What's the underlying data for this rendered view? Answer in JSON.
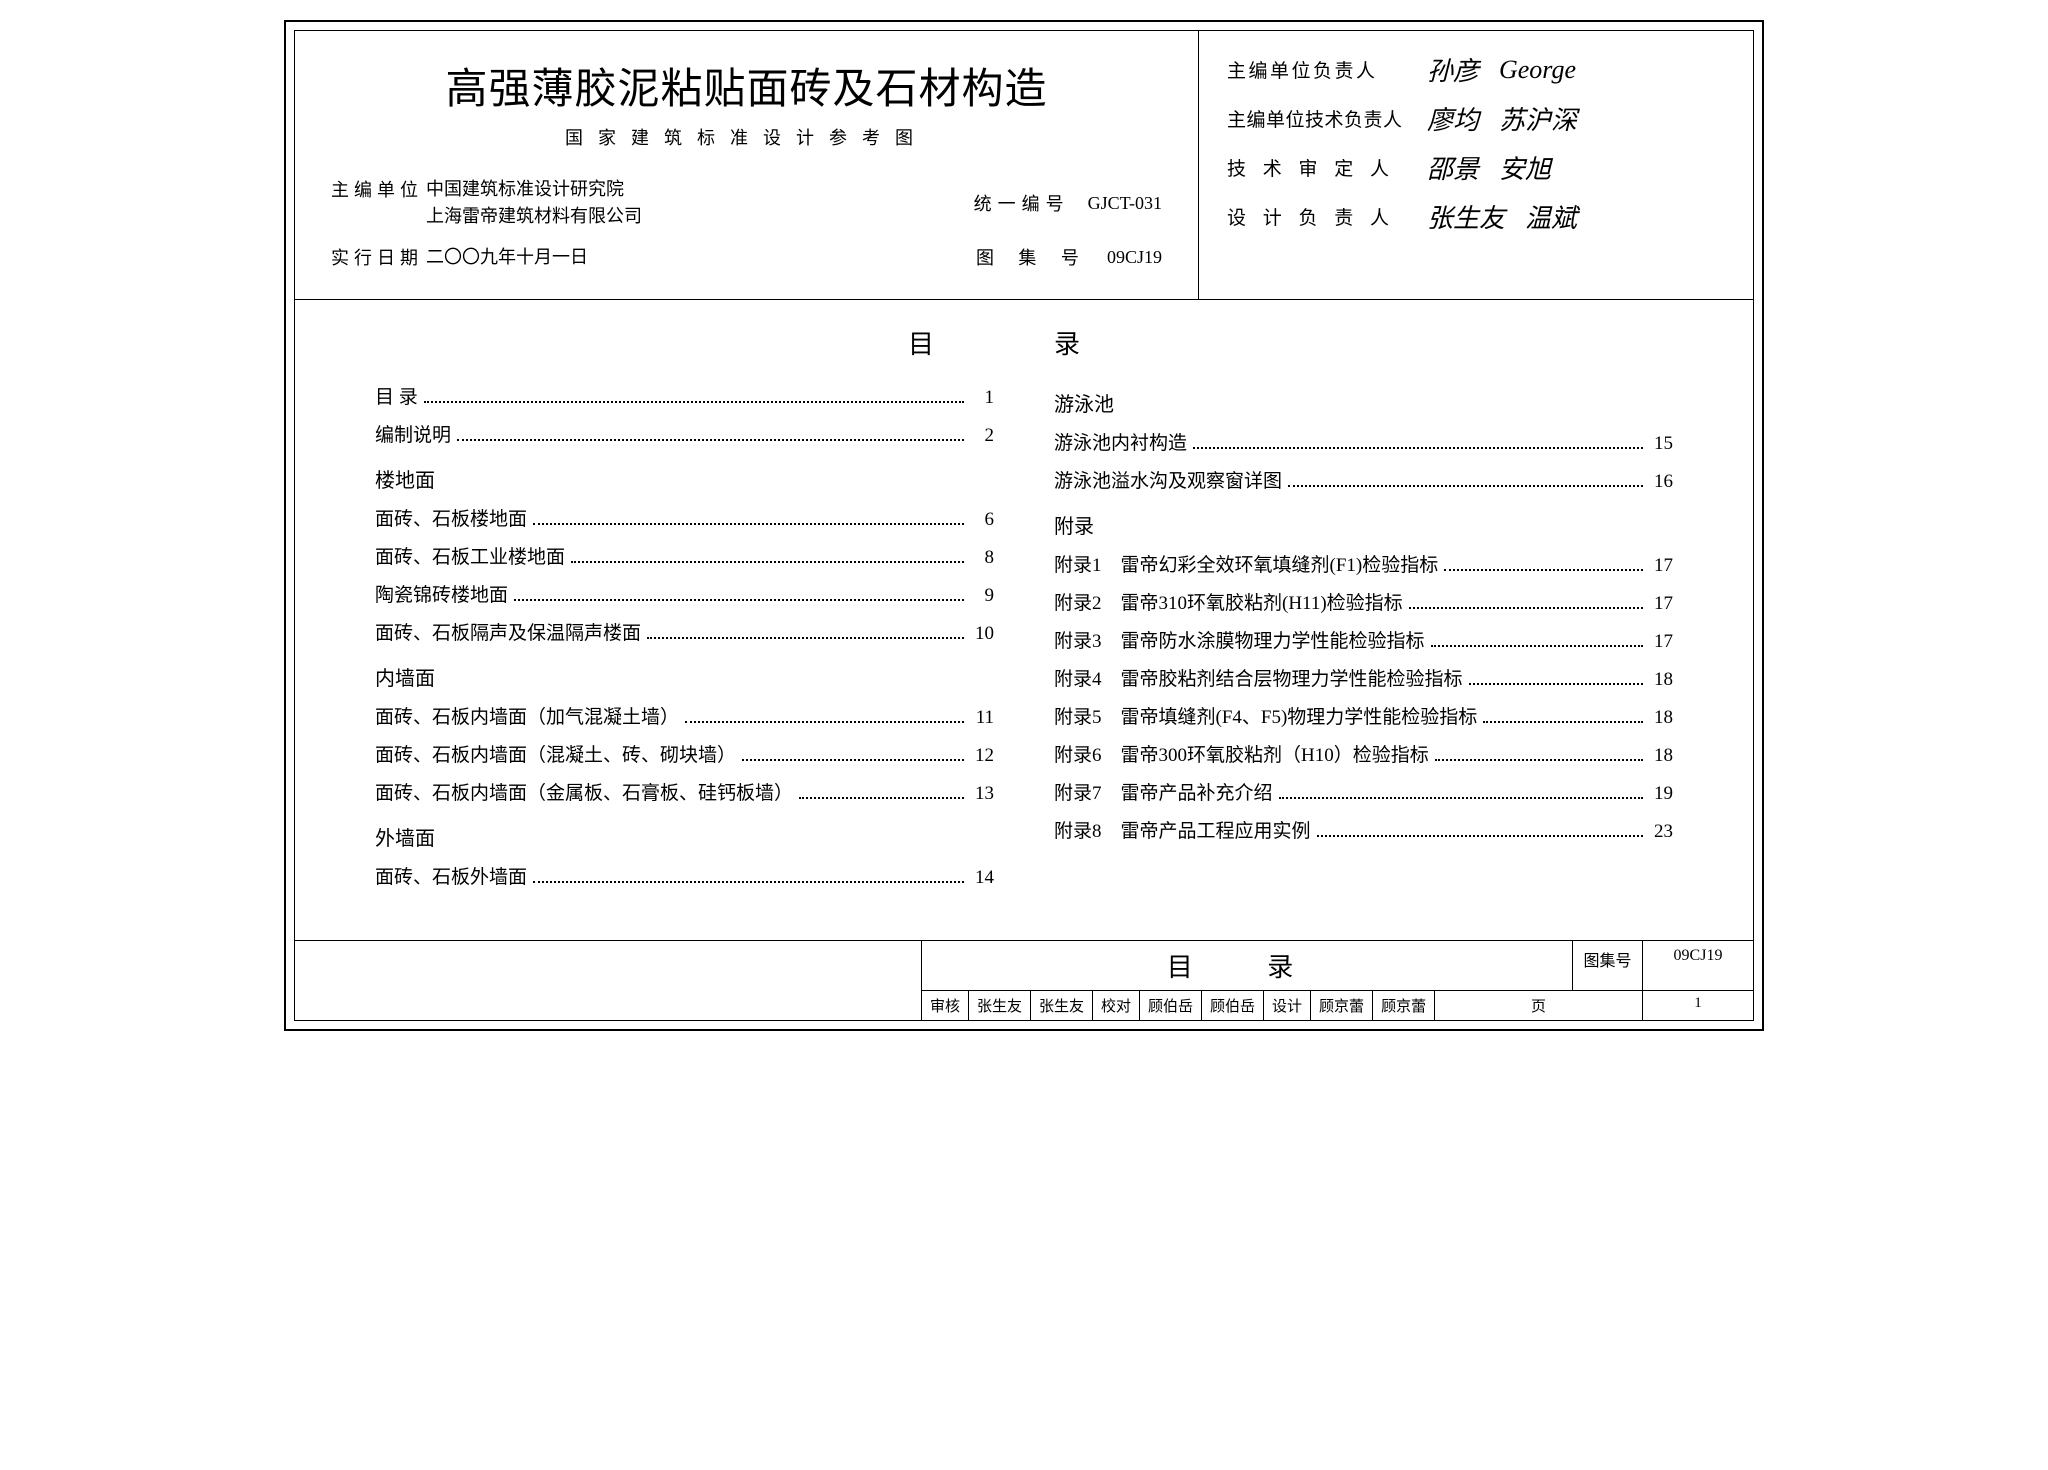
{
  "header": {
    "title": "高强薄胶泥粘贴面砖及石材构造",
    "subtitle": "国家建筑标准设计参考图",
    "org_label": "主编单位",
    "org_lines": "中国建筑标准设计研究院\n上海雷帝建筑材料有限公司",
    "code_label": "统一编号",
    "code_value": "GJCT-031",
    "date_label": "实行日期",
    "date_value": "二〇〇九年十月一日",
    "set_label": "图 集 号",
    "set_value": "09CJ19"
  },
  "signatures": {
    "rows": [
      {
        "label": "主编单位负责人",
        "s1": "孙彦",
        "s2": "George"
      },
      {
        "label": "主编单位技术负责人",
        "s1": "廖均",
        "s2": "苏沪深"
      },
      {
        "label": "技 术 审 定 人",
        "s1": "邵景",
        "s2": "安旭"
      },
      {
        "label": "设 计 负 责 人",
        "s1": "张生友",
        "s2": "温斌"
      }
    ]
  },
  "toc": {
    "heading": "目录",
    "left": [
      {
        "type": "entry",
        "text": "目 录",
        "page": "1"
      },
      {
        "type": "entry",
        "text": "编制说明",
        "page": "2"
      },
      {
        "type": "section",
        "text": "楼地面"
      },
      {
        "type": "entry",
        "text": "面砖、石板楼地面",
        "page": "6"
      },
      {
        "type": "entry",
        "text": "面砖、石板工业楼地面",
        "page": "8"
      },
      {
        "type": "entry",
        "text": "陶瓷锦砖楼地面",
        "page": "9"
      },
      {
        "type": "entry",
        "text": "面砖、石板隔声及保温隔声楼面",
        "page": "10"
      },
      {
        "type": "section",
        "text": "内墙面"
      },
      {
        "type": "entry",
        "text": "面砖、石板内墙面（加气混凝土墙）",
        "page": "11"
      },
      {
        "type": "entry",
        "text": "面砖、石板内墙面（混凝土、砖、砌块墙）",
        "page": "12"
      },
      {
        "type": "entry",
        "text": "面砖、石板内墙面（金属板、石膏板、硅钙板墙）",
        "page": "13"
      },
      {
        "type": "section",
        "text": "外墙面"
      },
      {
        "type": "entry",
        "text": "面砖、石板外墙面",
        "page": "14"
      }
    ],
    "right": [
      {
        "type": "section",
        "text": "游泳池"
      },
      {
        "type": "entry",
        "text": "游泳池内衬构造",
        "page": "15"
      },
      {
        "type": "entry",
        "text": "游泳池溢水沟及观察窗详图",
        "page": "16"
      },
      {
        "type": "section",
        "text": "附录"
      },
      {
        "type": "entry",
        "text": "附录1　雷帝幻彩全效环氧填缝剂(F1)检验指标",
        "page": "17"
      },
      {
        "type": "entry",
        "text": "附录2　雷帝310环氧胶粘剂(H11)检验指标",
        "page": "17"
      },
      {
        "type": "entry",
        "text": "附录3　雷帝防水涂膜物理力学性能检验指标",
        "page": "17"
      },
      {
        "type": "entry",
        "text": "附录4　雷帝胶粘剂结合层物理力学性能检验指标",
        "page": "18"
      },
      {
        "type": "entry",
        "text": "附录5　雷帝填缝剂(F4、F5)物理力学性能检验指标",
        "page": "18"
      },
      {
        "type": "entry",
        "text": "附录6　雷帝300环氧胶粘剂（H10）检验指标",
        "page": "18"
      },
      {
        "type": "entry",
        "text": "附录7　雷帝产品补充介绍",
        "page": "19"
      },
      {
        "type": "entry",
        "text": "附录8　雷帝产品工程应用实例",
        "page": "23"
      }
    ]
  },
  "footer": {
    "title": "目 录",
    "set_label": "图集号",
    "set_value": "09CJ19",
    "review_label": "审核",
    "review_name": "张生友",
    "review_sign": "张生友",
    "check_label": "校对",
    "check_name": "顾伯岳",
    "check_sign": "顾伯岳",
    "design_label": "设计",
    "design_name": "顾京蕾",
    "design_sign": "顾京蕾",
    "page_label": "页",
    "page_value": "1"
  }
}
